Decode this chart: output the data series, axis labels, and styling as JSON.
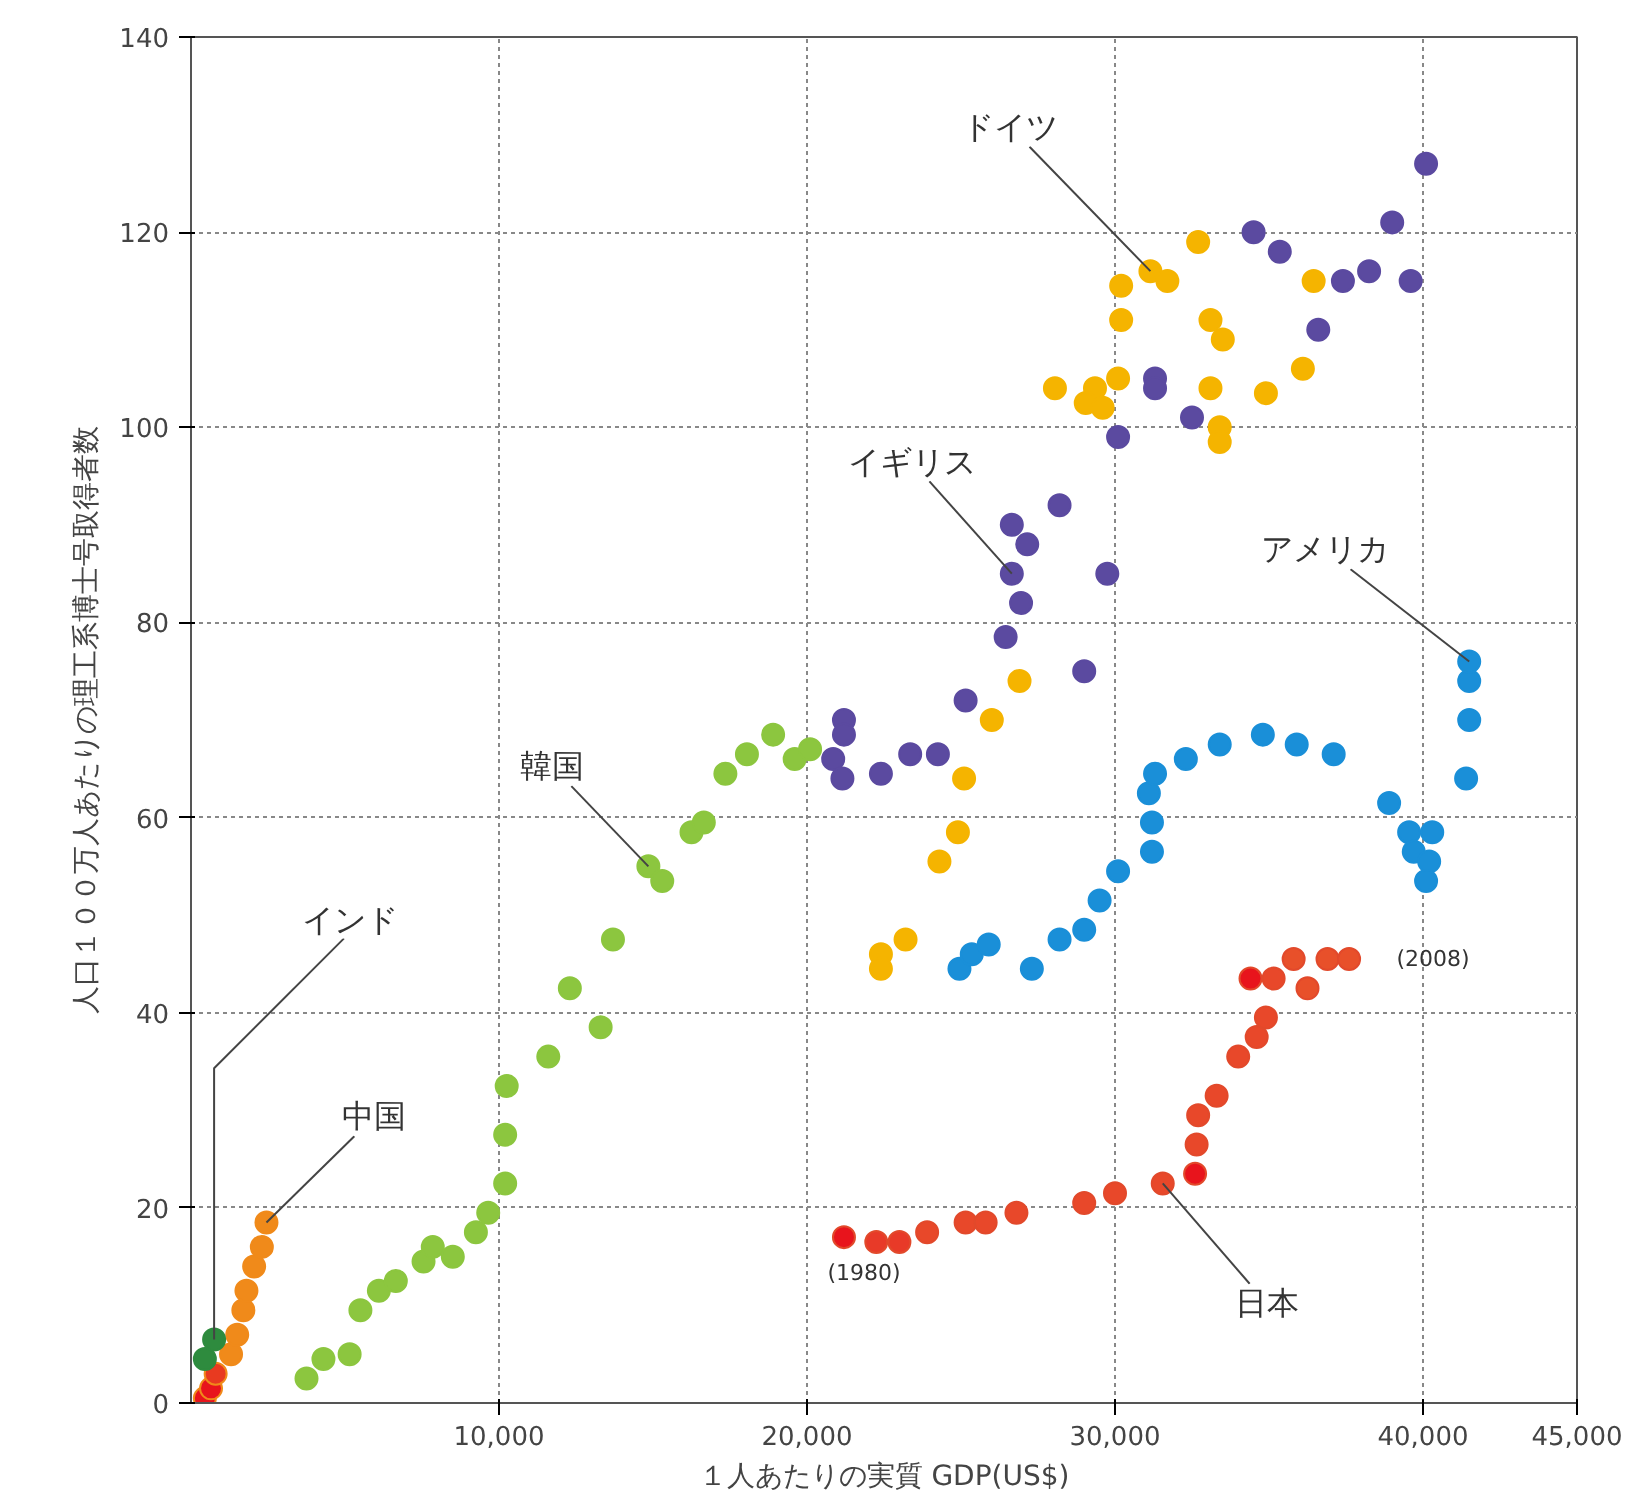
{
  "chart_data": {
    "type": "scatter",
    "xlabel": "１人あたりの実質 GDP(US$)",
    "ylabel": "人口１００万人あたりの理工系博士号取得者数",
    "xlim": [
      0,
      45000
    ],
    "ylim": [
      0,
      140
    ],
    "xticks": [
      {
        "value": 10000,
        "label": "10,000"
      },
      {
        "value": 20000,
        "label": "20,000"
      },
      {
        "value": 30000,
        "label": "30,000"
      },
      {
        "value": 40000,
        "label": "40,000"
      },
      {
        "value": 45000,
        "label": "45,000"
      }
    ],
    "yticks": [
      0,
      20,
      40,
      60,
      80,
      100,
      120,
      140
    ],
    "grid": true,
    "marker": "circle",
    "series": [
      {
        "color": "#f5b400",
        "x": [
          22400,
          22400,
          23200,
          24300,
          24900,
          25100,
          26000,
          26900,
          28050,
          29350,
          29050,
          29600,
          30100,
          30200,
          30200,
          31150,
          31700,
          32700,
          33100,
          33100,
          33500,
          33400,
          33400,
          34900,
          36100,
          36450
        ],
        "values": [
          46,
          44.5,
          47.5,
          55.5,
          58.5,
          64,
          70,
          74,
          104,
          104,
          102.5,
          102,
          105,
          114.5,
          111,
          116,
          115,
          119,
          111,
          104,
          109,
          100,
          98.5,
          103.5,
          106,
          115
        ]
      },
      {
        "color": "#5b4aa0",
        "x": [
          21200,
          21200,
          20850,
          21150,
          22400,
          23350,
          24250,
          25150,
          26450,
          26950,
          26650,
          27150,
          26650,
          28200,
          29000,
          29750,
          30100,
          31300,
          31300,
          32500,
          34500,
          35350,
          36600,
          37400,
          38250,
          39000,
          39600,
          40100
        ],
        "values": [
          70,
          68.5,
          66,
          64,
          64.5,
          66.5,
          66.5,
          72,
          78.5,
          82,
          85,
          88,
          90,
          92,
          75,
          85,
          99,
          105,
          104,
          101,
          120,
          118,
          110,
          115,
          116,
          121,
          115,
          127
        ]
      },
      {
        "color": "#1a8fd8",
        "x": [
          24950,
          25350,
          25900,
          27300,
          28200,
          29000,
          29500,
          30100,
          31200,
          31200,
          31100,
          31300,
          32300,
          33400,
          34800,
          35900,
          37100,
          38900,
          39550,
          40300,
          39700,
          40200,
          40100,
          41400,
          41500,
          41500,
          41500
        ],
        "values": [
          44.5,
          46,
          47,
          44.5,
          47.5,
          48.5,
          51.5,
          54.5,
          56.5,
          59.5,
          62.5,
          64.5,
          66,
          67.5,
          68.5,
          67.5,
          66.5,
          61.5,
          58.5,
          58.5,
          56.5,
          55.5,
          53.5,
          64,
          70,
          74,
          76
        ]
      },
      {
        "color": "#e2492b",
        "x": [
          21200,
          22250,
          23000,
          23900,
          25150,
          25800,
          26800,
          29000,
          30000,
          31550,
          32600,
          32650,
          32700,
          33300,
          34000,
          34600,
          34900,
          34400,
          35150,
          35800,
          36250,
          36900,
          37600
        ],
        "values": [
          17,
          16.5,
          16.5,
          17.5,
          18.5,
          18.5,
          19.5,
          20.5,
          21.5,
          22.5,
          23.5,
          26.5,
          29.5,
          31.5,
          35.5,
          37.5,
          39.5,
          43.5,
          43.5,
          45.5,
          42.5,
          45.5,
          45.5
        ],
        "colors": [
          "#e8141c",
          "#e83a28",
          "#e83a28",
          "#e8482a",
          "#e8482a",
          "#e8482a",
          "#e8482a",
          "#e8482a",
          "#e8482a",
          "#e8482a",
          "#e8141c",
          "#e8482a",
          "#e8482a",
          "#e8482a",
          "#e8482a",
          "#e8482a",
          "#e8482a",
          "#e8141c",
          "#e8482a",
          "#e8502a",
          "#e8502a",
          "#e8502a",
          "#e8502a"
        ]
      },
      {
        "color": "#8cc63f",
        "x": [
          3750,
          4300,
          5150,
          5500,
          6100,
          6650,
          7550,
          7850,
          8500,
          9250,
          9650,
          10200,
          10200,
          10250,
          11600,
          13300,
          12300,
          13700,
          14850,
          15300,
          16250,
          16650,
          17350,
          18050,
          18900,
          19600,
          20100
        ],
        "values": [
          2.5,
          4.5,
          5,
          9.5,
          11.5,
          12.5,
          14.5,
          16,
          15,
          17.5,
          19.5,
          22.5,
          27.5,
          32.5,
          35.5,
          38.5,
          42.5,
          47.5,
          55,
          53.5,
          58.5,
          59.5,
          64.5,
          66.5,
          68.5,
          66,
          67
        ]
      },
      {
        "color": "#f08a1a",
        "x": [
          450,
          650,
          800,
          950,
          1300,
          1500,
          1700,
          1800,
          2050,
          2300,
          2450
        ],
        "values": [
          0.5,
          1.5,
          3,
          null,
          5,
          7,
          9.5,
          11.5,
          14,
          16,
          18.5
        ],
        "colors": [
          "#e8141c",
          "#e8141c",
          "#e83a20",
          "#f06a1a",
          "#f08a1a",
          "#f08a1a",
          "#f08a1a",
          "#f08a1a",
          "#f08a1a",
          "#f08a1a",
          "#f08a1a"
        ]
      },
      {
        "color": "#2e8b3e",
        "x": [
          450,
          750
        ],
        "values": [
          4.5,
          6.5
        ]
      }
    ],
    "annotations": [
      {
        "text": "ドイツ",
        "x": 31150,
        "y": 116
      },
      {
        "text": "イギリス",
        "x": 26650,
        "y": 85
      },
      {
        "text": "アメリカ",
        "x": 41500,
        "y": 76
      },
      {
        "text": "韓国",
        "x": 14850,
        "y": 55
      },
      {
        "text": "インド",
        "x": 750,
        "y": 6.5
      },
      {
        "text": "中国",
        "x": 2450,
        "y": 18.5
      },
      {
        "text": "日本",
        "x": 31550,
        "y": 22.5
      },
      {
        "text": "(1980)",
        "x": 21200,
        "y": 17
      },
      {
        "text": "(2008)",
        "x": 37600,
        "y": 45.5
      }
    ]
  }
}
